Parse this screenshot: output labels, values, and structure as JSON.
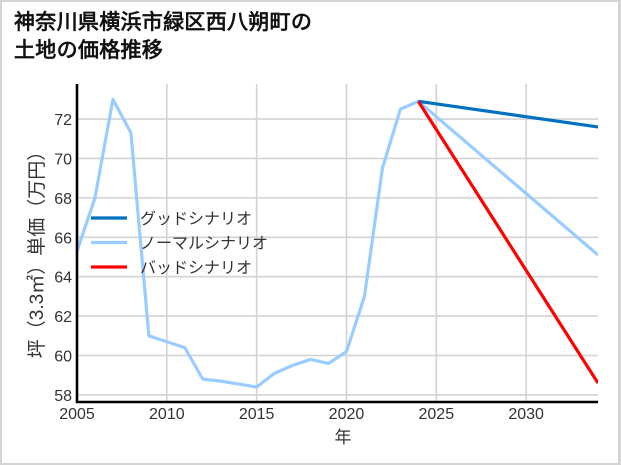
{
  "title": {
    "line1": "神奈川県横浜市緑区西八朔町の",
    "line2": "土地の価格推移"
  },
  "chart_data": {
    "type": "line",
    "title": "神奈川県横浜市緑区西八朔町の土地の価格推移",
    "xlabel": "年",
    "ylabel": "坪（3.3㎡）単価（万円）",
    "xlim": [
      2005,
      2034
    ],
    "ylim": [
      57.64,
      73.78
    ],
    "xticks": [
      2005,
      2010,
      2015,
      2020,
      2025,
      2030
    ],
    "yticks": [
      58,
      60,
      62,
      64,
      66,
      68,
      70,
      72
    ],
    "grid": true,
    "legend_position": "center-left",
    "legend": [
      "グッドシナリオ",
      "ノーマルシナリオ",
      "バッドシナリオ"
    ],
    "series": [
      {
        "name": "グッドシナリオ",
        "color": "#0070c0",
        "x": [
          2024,
          2034
        ],
        "values": [
          72.9,
          71.6
        ]
      },
      {
        "name": "ノーマルシナリオ",
        "color": "#99ccff",
        "x": [
          2005,
          2006,
          2007,
          2008,
          2009,
          2010,
          2011,
          2012,
          2013,
          2014,
          2015,
          2016,
          2017,
          2018,
          2019,
          2020,
          2021,
          2022,
          2023,
          2024,
          2034
        ],
        "values": [
          65.3,
          68.0,
          73.0,
          71.3,
          61.0,
          60.7,
          60.4,
          58.8,
          58.7,
          58.55,
          58.4,
          59.1,
          59.5,
          59.8,
          59.6,
          60.2,
          63.0,
          69.5,
          72.5,
          72.9,
          65.1
        ]
      },
      {
        "name": "バッドシナリオ",
        "color": "#ff0000",
        "x": [
          2024,
          2034
        ],
        "values": [
          72.9,
          58.6
        ]
      }
    ],
    "draw_order": [
      1,
      0,
      2
    ]
  }
}
